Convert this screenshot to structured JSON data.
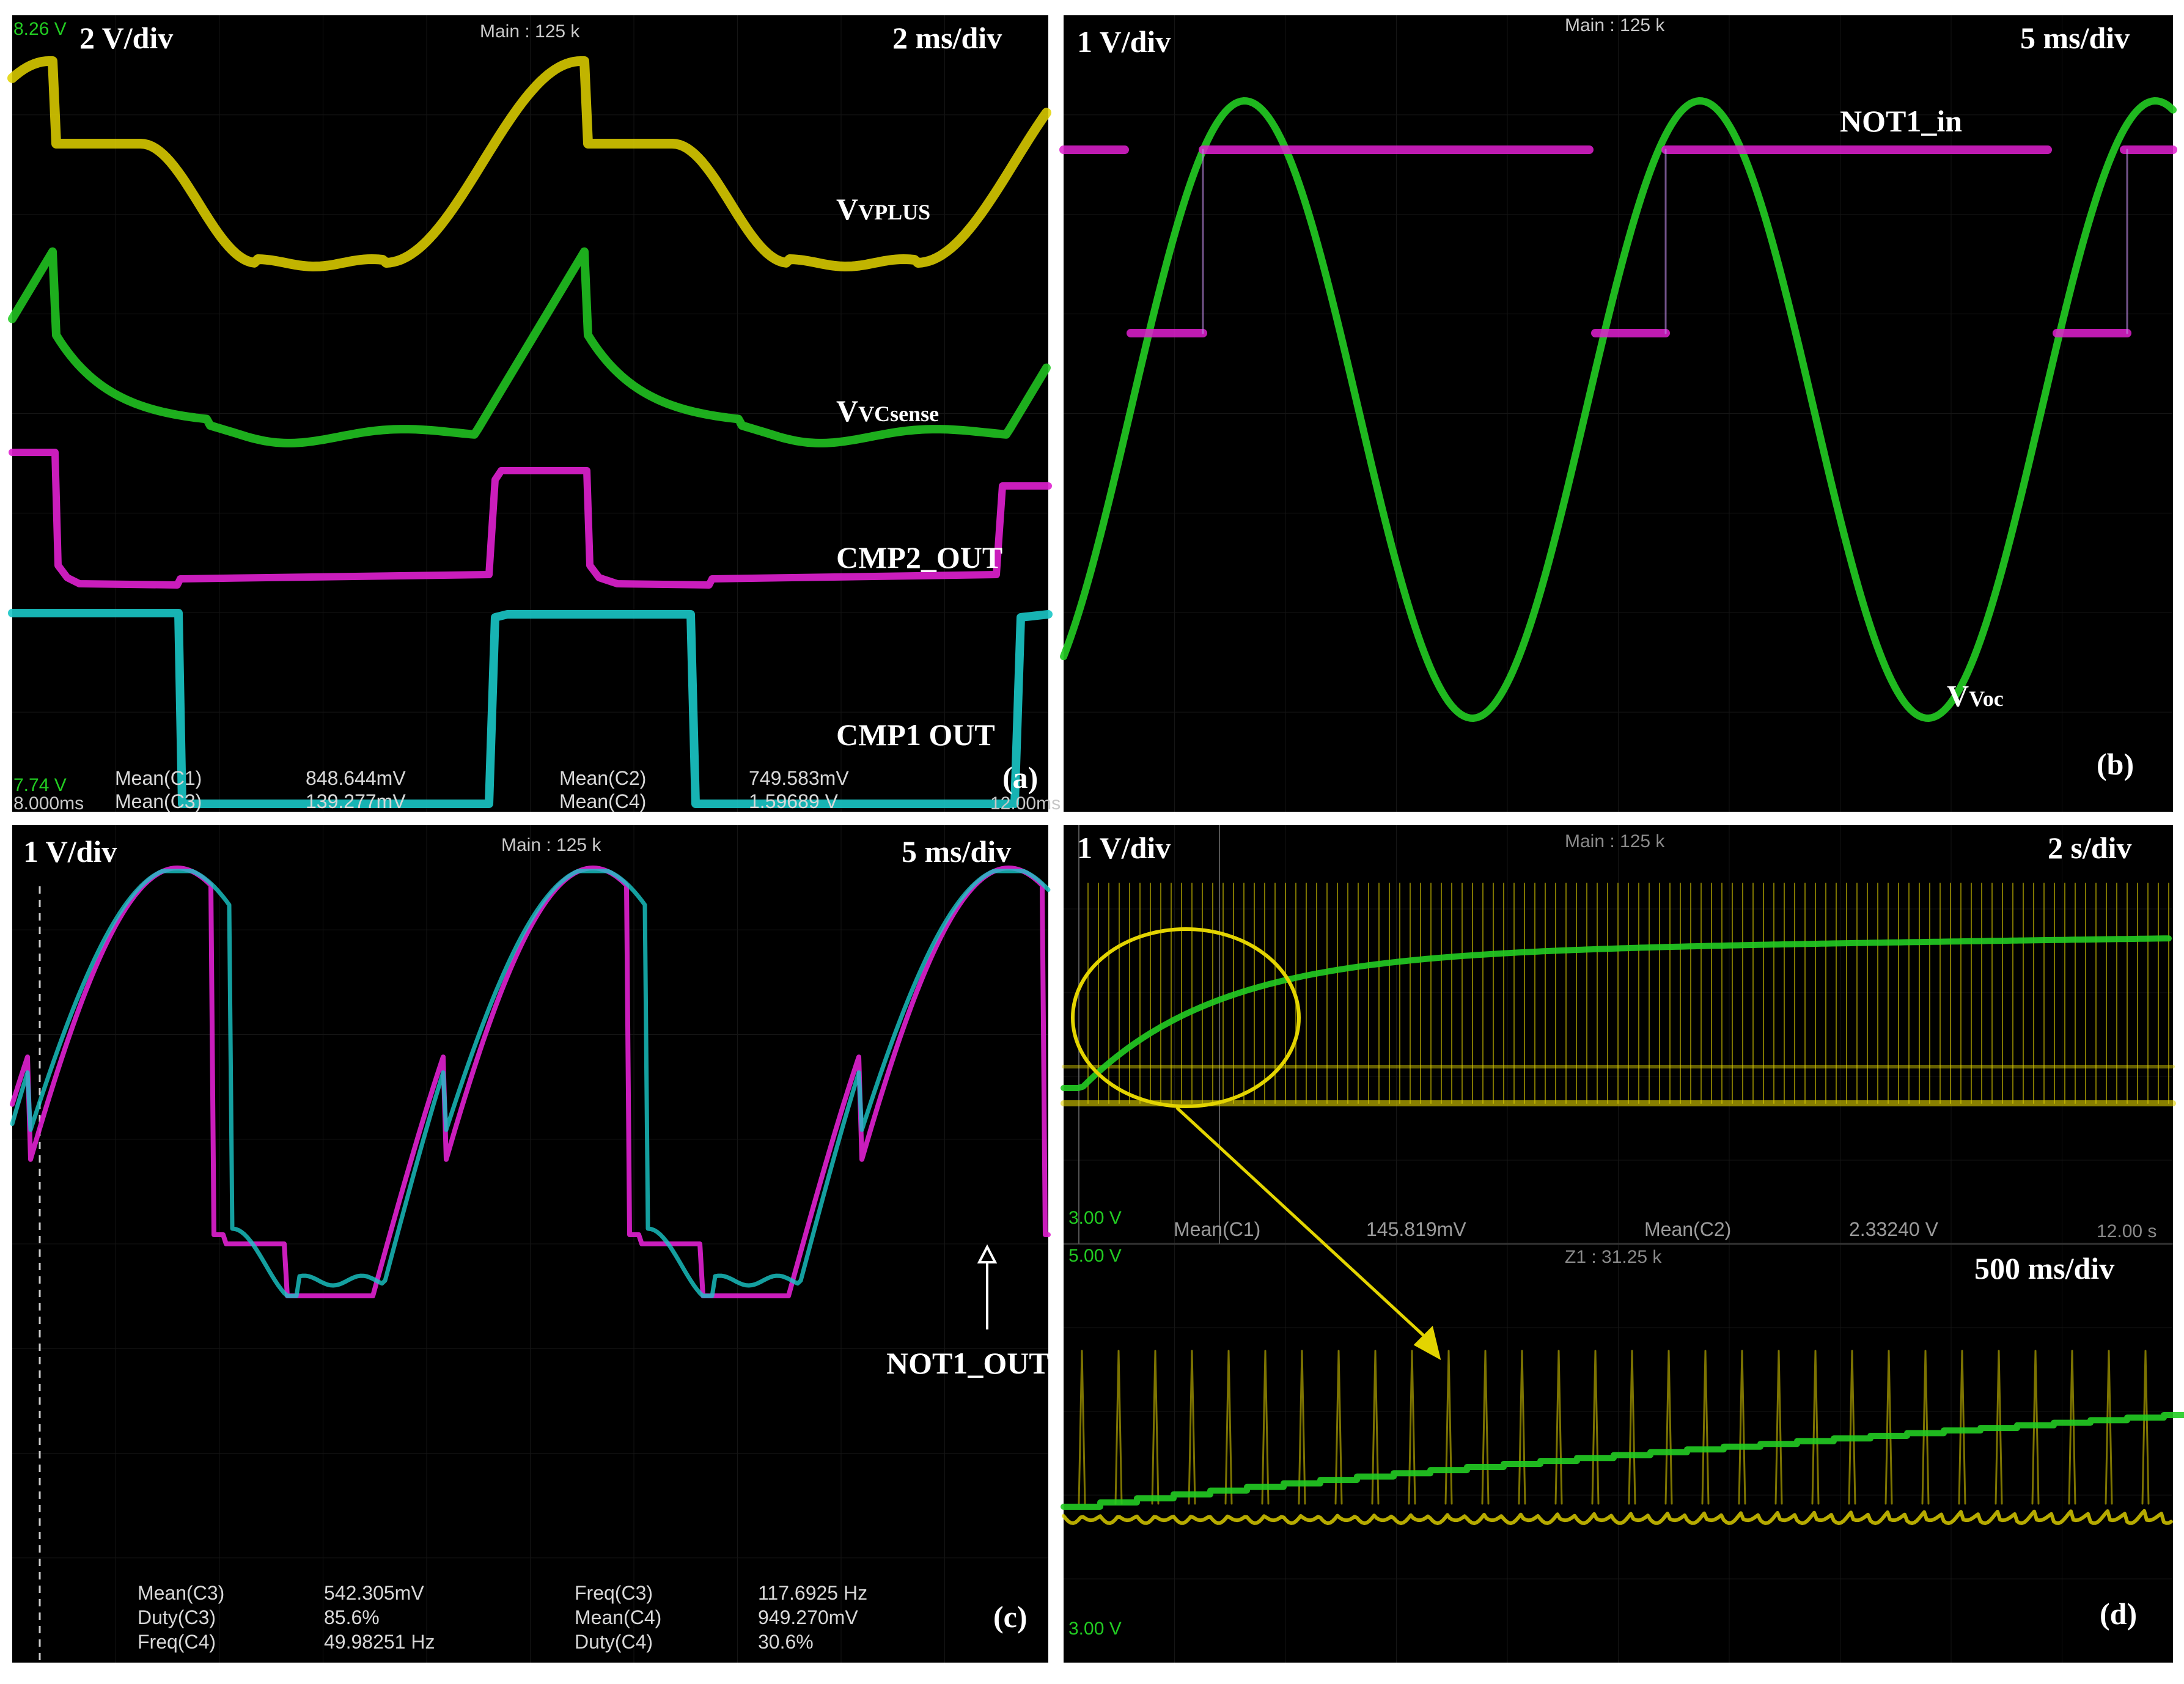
{
  "panels": {
    "a": {
      "tag": "(a)",
      "vdiv": "2 V/div",
      "tdiv": "2 ms/div",
      "header": "Main : 125 k",
      "top_left_readout": "8.26 V",
      "bottom_left_readout": "7.74 V",
      "bottom_left_time": "8.000ms",
      "bottom_right_time": "12.00ms",
      "traces": {
        "vplus": "VPLUS",
        "vcsense": "VCsense",
        "cmp2": "CMP2_OUT",
        "cmp1": "CMP1 OUT"
      },
      "measurements": [
        {
          "name": "Mean(C1)",
          "value": "848.644mV"
        },
        {
          "name": "Mean(C2)",
          "value": "749.583mV"
        },
        {
          "name": "Mean(C3)",
          "value": "139.277mV"
        },
        {
          "name": "Mean(C4)",
          "value": "1.59689 V"
        }
      ]
    },
    "b": {
      "tag": "(b)",
      "vdiv": "1 V/div",
      "tdiv": "5 ms/div",
      "header": "Main : 125 k",
      "traces": {
        "not1_in": "NOT1_in",
        "voc": "Voc"
      }
    },
    "c": {
      "tag": "(c)",
      "vdiv": "1 V/div",
      "tdiv": "5 ms/div",
      "header": "Main : 125 k",
      "traces": {
        "not1_out": "NOT1_OUT"
      },
      "measurements": [
        {
          "name": "Mean(C3)",
          "value": "542.305mV"
        },
        {
          "name": "Freq(C3)",
          "value": "117.6925 Hz"
        },
        {
          "name": "Duty(C3)",
          "value": "85.6%"
        },
        {
          "name": "Mean(C4)",
          "value": "949.270mV"
        },
        {
          "name": "Freq(C4)",
          "value": "49.98251 Hz"
        },
        {
          "name": "Duty(C4)",
          "value": "30.6%"
        }
      ]
    },
    "d": {
      "tag": "(d)",
      "vdiv": "1 V/div",
      "tdiv": "2 s/div",
      "tdiv_zoom": "500 ms/div",
      "header": "Main : 125 k",
      "zoom_header": "Z1 : 31.25 k",
      "top_readout": "3.00 V",
      "zoom_top_readout": "5.00 V",
      "zoom_bottom_readout": "3.00 V",
      "right_time": "12.00 s",
      "measurements": [
        {
          "name": "Mean(C1)",
          "value": "145.819mV"
        },
        {
          "name": "Mean(C2)",
          "value": "2.33240 V"
        }
      ]
    }
  },
  "colors": {
    "yellow": "#e3d400",
    "green": "#22cc22",
    "magenta": "#e020d0",
    "cyan": "#19c7c7",
    "violet": "#c08ae8",
    "background": "#000000"
  },
  "chart_data": [
    {
      "panel": "a",
      "type": "line",
      "series": [
        {
          "name": "VPLUS",
          "color": "yellow"
        },
        {
          "name": "VCsense",
          "color": "green"
        },
        {
          "name": "CMP2_OUT",
          "color": "magenta"
        },
        {
          "name": "CMP1 OUT",
          "color": "cyan"
        }
      ]
    },
    {
      "panel": "b",
      "type": "line",
      "series": [
        {
          "name": "NOT1_in",
          "color": "magenta"
        },
        {
          "name": "Voc",
          "color": "green"
        }
      ]
    },
    {
      "panel": "c",
      "type": "line",
      "series": [
        {
          "name": "",
          "color": "magenta"
        },
        {
          "name": "NOT1_OUT",
          "color": "cyan"
        }
      ]
    },
    {
      "panel": "d",
      "type": "line",
      "series": [
        {
          "name": "",
          "color": "green"
        },
        {
          "name": "",
          "color": "yellow"
        }
      ]
    }
  ]
}
